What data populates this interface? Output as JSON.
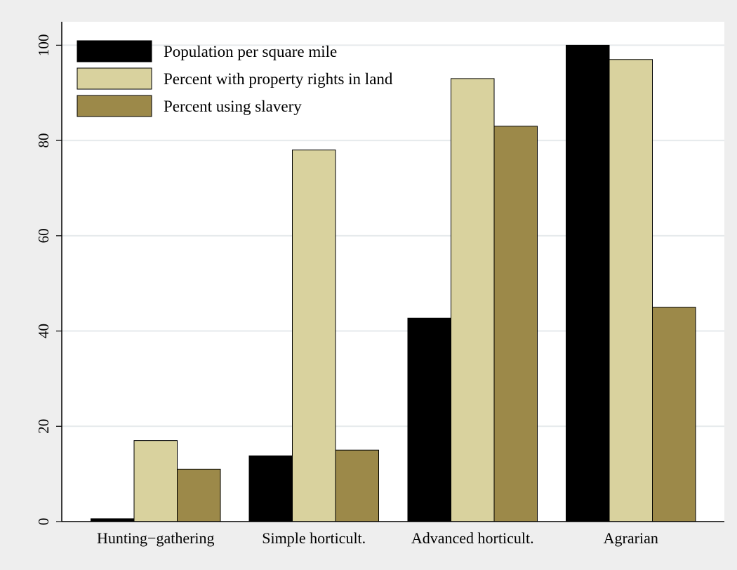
{
  "chart_data": {
    "type": "bar",
    "title": "",
    "xlabel": "",
    "ylabel": "",
    "ylim": [
      0,
      104
    ],
    "yticks": [
      0,
      20,
      40,
      60,
      80,
      100
    ],
    "grid": true,
    "legend_position": "top-left",
    "categories": [
      "Hunting−gathering",
      "Simple horticult.",
      "Advanced horticult.",
      "Agrarian"
    ],
    "series": [
      {
        "name": "Population per square mile",
        "color": "#000000",
        "values": [
          0.6,
          13.8,
          42.7,
          100
        ]
      },
      {
        "name": "Percent with property rights in land",
        "color": "#d9d29e",
        "values": [
          17,
          78,
          93,
          97
        ]
      },
      {
        "name": "Percent using slavery",
        "color": "#9c8949",
        "values": [
          11,
          15,
          83,
          45
        ]
      }
    ]
  }
}
